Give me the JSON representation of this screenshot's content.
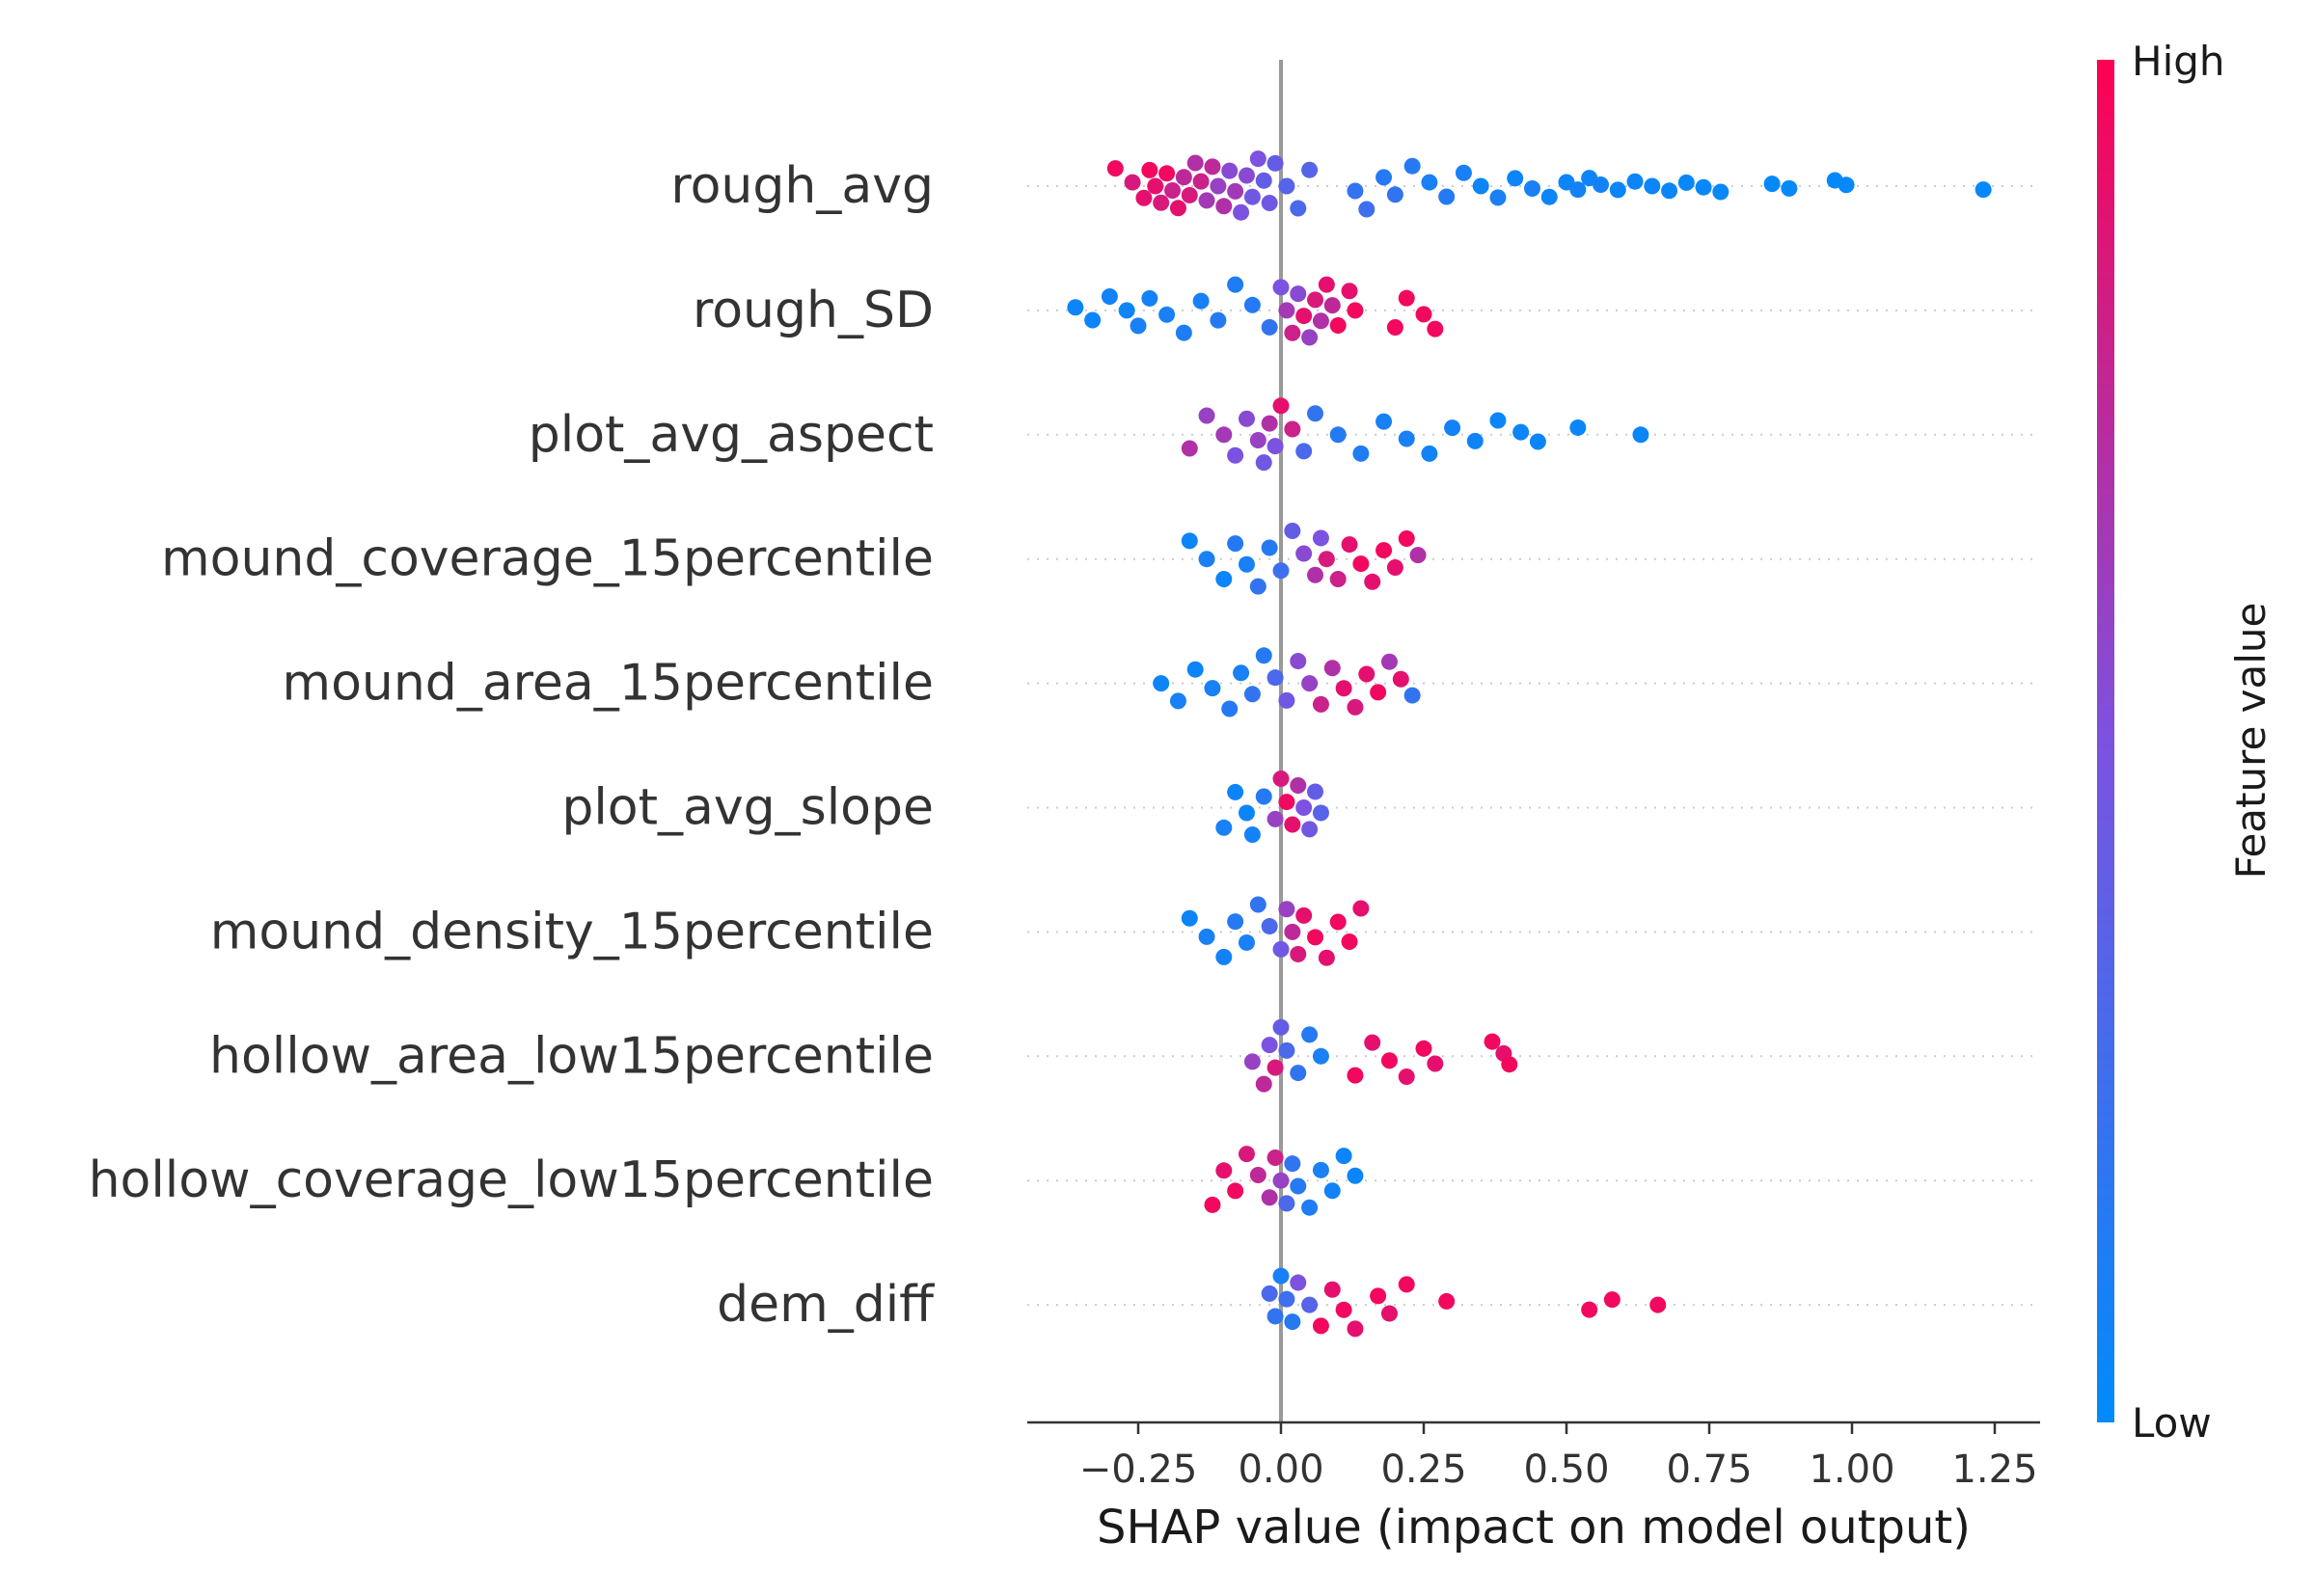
{
  "chart_data": {
    "type": "scatter",
    "subtype": "shap-beeswarm",
    "title": "",
    "xlabel": "SHAP value (impact on model output)",
    "xlim": [
      -0.44,
      1.31
    ],
    "x_ticks": [
      -0.25,
      0.0,
      0.25,
      0.5,
      0.75,
      1.0,
      1.25
    ],
    "x_tick_labels": [
      "−0.25",
      "0.00",
      "0.25",
      "0.50",
      "0.75",
      "1.00",
      "1.25"
    ],
    "zero_line": 0.0,
    "colorbar": {
      "title": "Feature value",
      "high_label": "High",
      "low_label": "Low",
      "low_color": "#008bfb",
      "mid_color": "#7c52e0",
      "high_color": "#ff0051"
    },
    "features": [
      {
        "name": "rough_avg",
        "points": [
          {
            "x": -0.29,
            "v": 0.95
          },
          {
            "x": -0.26,
            "v": 0.85
          },
          {
            "x": -0.24,
            "v": 0.9
          },
          {
            "x": -0.23,
            "v": 0.95
          },
          {
            "x": -0.22,
            "v": 0.9
          },
          {
            "x": -0.21,
            "v": 0.85
          },
          {
            "x": -0.2,
            "v": 0.95
          },
          {
            "x": -0.19,
            "v": 0.8
          },
          {
            "x": -0.18,
            "v": 0.9
          },
          {
            "x": -0.17,
            "v": 0.75
          },
          {
            "x": -0.16,
            "v": 0.85
          },
          {
            "x": -0.15,
            "v": 0.7
          },
          {
            "x": -0.14,
            "v": 0.8
          },
          {
            "x": -0.13,
            "v": 0.65
          },
          {
            "x": -0.12,
            "v": 0.75
          },
          {
            "x": -0.11,
            "v": 0.6
          },
          {
            "x": -0.1,
            "v": 0.7
          },
          {
            "x": -0.09,
            "v": 0.55
          },
          {
            "x": -0.08,
            "v": 0.65
          },
          {
            "x": -0.07,
            "v": 0.5
          },
          {
            "x": -0.06,
            "v": 0.55
          },
          {
            "x": -0.05,
            "v": 0.45
          },
          {
            "x": -0.04,
            "v": 0.5
          },
          {
            "x": -0.03,
            "v": 0.4
          },
          {
            "x": -0.02,
            "v": 0.45
          },
          {
            "x": -0.01,
            "v": 0.4
          },
          {
            "x": 0.01,
            "v": 0.35
          },
          {
            "x": 0.03,
            "v": 0.3
          },
          {
            "x": 0.05,
            "v": 0.35
          },
          {
            "x": 0.13,
            "v": 0.2
          },
          {
            "x": 0.15,
            "v": 0.25
          },
          {
            "x": 0.18,
            "v": 0.15
          },
          {
            "x": 0.2,
            "v": 0.2
          },
          {
            "x": 0.23,
            "v": 0.15
          },
          {
            "x": 0.26,
            "v": 0.1
          },
          {
            "x": 0.29,
            "v": 0.15
          },
          {
            "x": 0.32,
            "v": 0.1
          },
          {
            "x": 0.35,
            "v": 0.05
          },
          {
            "x": 0.38,
            "v": 0.1
          },
          {
            "x": 0.41,
            "v": 0.05
          },
          {
            "x": 0.44,
            "v": 0.1
          },
          {
            "x": 0.47,
            "v": 0.05
          },
          {
            "x": 0.5,
            "v": 0.05
          },
          {
            "x": 0.52,
            "v": 0.08
          },
          {
            "x": 0.54,
            "v": 0.05
          },
          {
            "x": 0.56,
            "v": 0.08
          },
          {
            "x": 0.59,
            "v": 0.05
          },
          {
            "x": 0.62,
            "v": 0.05
          },
          {
            "x": 0.65,
            "v": 0.05
          },
          {
            "x": 0.68,
            "v": 0.05
          },
          {
            "x": 0.71,
            "v": 0.03
          },
          {
            "x": 0.74,
            "v": 0.03
          },
          {
            "x": 0.77,
            "v": 0.03
          },
          {
            "x": 0.86,
            "v": 0.02
          },
          {
            "x": 0.89,
            "v": 0.02
          },
          {
            "x": 0.97,
            "v": 0.02
          },
          {
            "x": 0.99,
            "v": 0.02
          },
          {
            "x": 1.23,
            "v": 0.02
          }
        ]
      },
      {
        "name": "rough_SD",
        "points": [
          {
            "x": -0.36,
            "v": 0.05
          },
          {
            "x": -0.33,
            "v": 0.05
          },
          {
            "x": -0.3,
            "v": 0.08
          },
          {
            "x": -0.27,
            "v": 0.05
          },
          {
            "x": -0.25,
            "v": 0.1
          },
          {
            "x": -0.23,
            "v": 0.08
          },
          {
            "x": -0.2,
            "v": 0.1
          },
          {
            "x": -0.17,
            "v": 0.12
          },
          {
            "x": -0.14,
            "v": 0.1
          },
          {
            "x": -0.11,
            "v": 0.15
          },
          {
            "x": -0.08,
            "v": 0.12
          },
          {
            "x": -0.05,
            "v": 0.15
          },
          {
            "x": -0.02,
            "v": 0.2
          },
          {
            "x": 0.0,
            "v": 0.5
          },
          {
            "x": 0.01,
            "v": 0.65
          },
          {
            "x": 0.02,
            "v": 0.8
          },
          {
            "x": 0.03,
            "v": 0.55
          },
          {
            "x": 0.04,
            "v": 0.9
          },
          {
            "x": 0.05,
            "v": 0.6
          },
          {
            "x": 0.06,
            "v": 0.85
          },
          {
            "x": 0.07,
            "v": 0.7
          },
          {
            "x": 0.08,
            "v": 0.9
          },
          {
            "x": 0.09,
            "v": 0.75
          },
          {
            "x": 0.1,
            "v": 0.95
          },
          {
            "x": 0.12,
            "v": 0.9
          },
          {
            "x": 0.13,
            "v": 0.95
          },
          {
            "x": 0.2,
            "v": 0.95
          },
          {
            "x": 0.22,
            "v": 0.95
          },
          {
            "x": 0.25,
            "v": 0.95
          },
          {
            "x": 0.27,
            "v": 0.95
          }
        ]
      },
      {
        "name": "plot_avg_aspect",
        "points": [
          {
            "x": -0.16,
            "v": 0.7
          },
          {
            "x": -0.13,
            "v": 0.6
          },
          {
            "x": -0.1,
            "v": 0.65
          },
          {
            "x": -0.08,
            "v": 0.5
          },
          {
            "x": -0.06,
            "v": 0.55
          },
          {
            "x": -0.04,
            "v": 0.6
          },
          {
            "x": -0.03,
            "v": 0.45
          },
          {
            "x": -0.02,
            "v": 0.7
          },
          {
            "x": -0.01,
            "v": 0.5
          },
          {
            "x": 0.0,
            "v": 0.9
          },
          {
            "x": 0.02,
            "v": 0.8
          },
          {
            "x": 0.04,
            "v": 0.3
          },
          {
            "x": 0.06,
            "v": 0.2
          },
          {
            "x": 0.1,
            "v": 0.15
          },
          {
            "x": 0.14,
            "v": 0.12
          },
          {
            "x": 0.18,
            "v": 0.1
          },
          {
            "x": 0.22,
            "v": 0.1
          },
          {
            "x": 0.26,
            "v": 0.08
          },
          {
            "x": 0.3,
            "v": 0.08
          },
          {
            "x": 0.34,
            "v": 0.06
          },
          {
            "x": 0.38,
            "v": 0.05
          },
          {
            "x": 0.42,
            "v": 0.05
          },
          {
            "x": 0.45,
            "v": 0.05
          },
          {
            "x": 0.52,
            "v": 0.04
          },
          {
            "x": 0.63,
            "v": 0.04
          }
        ]
      },
      {
        "name": "mound_coverage_15percentile",
        "points": [
          {
            "x": -0.16,
            "v": 0.05
          },
          {
            "x": -0.13,
            "v": 0.1
          },
          {
            "x": -0.1,
            "v": 0.05
          },
          {
            "x": -0.08,
            "v": 0.15
          },
          {
            "x": -0.06,
            "v": 0.1
          },
          {
            "x": -0.04,
            "v": 0.2
          },
          {
            "x": -0.02,
            "v": 0.15
          },
          {
            "x": 0.0,
            "v": 0.25
          },
          {
            "x": 0.02,
            "v": 0.4
          },
          {
            "x": 0.04,
            "v": 0.55
          },
          {
            "x": 0.06,
            "v": 0.7
          },
          {
            "x": 0.07,
            "v": 0.5
          },
          {
            "x": 0.08,
            "v": 0.85
          },
          {
            "x": 0.1,
            "v": 0.8
          },
          {
            "x": 0.12,
            "v": 0.9
          },
          {
            "x": 0.14,
            "v": 0.95
          },
          {
            "x": 0.16,
            "v": 0.9
          },
          {
            "x": 0.18,
            "v": 0.95
          },
          {
            "x": 0.2,
            "v": 0.9
          },
          {
            "x": 0.22,
            "v": 0.95
          },
          {
            "x": 0.24,
            "v": 0.7
          }
        ]
      },
      {
        "name": "mound_area_15percentile",
        "points": [
          {
            "x": -0.21,
            "v": 0.05
          },
          {
            "x": -0.18,
            "v": 0.1
          },
          {
            "x": -0.15,
            "v": 0.05
          },
          {
            "x": -0.12,
            "v": 0.1
          },
          {
            "x": -0.09,
            "v": 0.15
          },
          {
            "x": -0.07,
            "v": 0.1
          },
          {
            "x": -0.05,
            "v": 0.2
          },
          {
            "x": -0.03,
            "v": 0.15
          },
          {
            "x": -0.01,
            "v": 0.3
          },
          {
            "x": 0.01,
            "v": 0.45
          },
          {
            "x": 0.03,
            "v": 0.55
          },
          {
            "x": 0.05,
            "v": 0.6
          },
          {
            "x": 0.07,
            "v": 0.8
          },
          {
            "x": 0.09,
            "v": 0.7
          },
          {
            "x": 0.11,
            "v": 0.9
          },
          {
            "x": 0.13,
            "v": 0.85
          },
          {
            "x": 0.15,
            "v": 0.9
          },
          {
            "x": 0.17,
            "v": 0.95
          },
          {
            "x": 0.19,
            "v": 0.65
          },
          {
            "x": 0.21,
            "v": 0.9
          },
          {
            "x": 0.23,
            "v": 0.2
          }
        ]
      },
      {
        "name": "plot_avg_slope",
        "points": [
          {
            "x": -0.1,
            "v": 0.1
          },
          {
            "x": -0.08,
            "v": 0.05
          },
          {
            "x": -0.06,
            "v": 0.05
          },
          {
            "x": -0.05,
            "v": 0.08
          },
          {
            "x": -0.03,
            "v": 0.15
          },
          {
            "x": -0.01,
            "v": 0.6
          },
          {
            "x": 0.0,
            "v": 0.85
          },
          {
            "x": 0.01,
            "v": 0.95
          },
          {
            "x": 0.02,
            "v": 0.9
          },
          {
            "x": 0.03,
            "v": 0.7
          },
          {
            "x": 0.04,
            "v": 0.5
          },
          {
            "x": 0.05,
            "v": 0.45
          },
          {
            "x": 0.06,
            "v": 0.4
          },
          {
            "x": 0.07,
            "v": 0.35
          }
        ]
      },
      {
        "name": "mound_density_15percentile",
        "points": [
          {
            "x": -0.16,
            "v": 0.05
          },
          {
            "x": -0.13,
            "v": 0.1
          },
          {
            "x": -0.1,
            "v": 0.08
          },
          {
            "x": -0.08,
            "v": 0.15
          },
          {
            "x": -0.06,
            "v": 0.1
          },
          {
            "x": -0.04,
            "v": 0.2
          },
          {
            "x": -0.02,
            "v": 0.3
          },
          {
            "x": 0.0,
            "v": 0.45
          },
          {
            "x": 0.01,
            "v": 0.6
          },
          {
            "x": 0.02,
            "v": 0.75
          },
          {
            "x": 0.03,
            "v": 0.85
          },
          {
            "x": 0.04,
            "v": 0.9
          },
          {
            "x": 0.06,
            "v": 0.95
          },
          {
            "x": 0.08,
            "v": 0.9
          },
          {
            "x": 0.1,
            "v": 0.95
          },
          {
            "x": 0.12,
            "v": 0.95
          },
          {
            "x": 0.14,
            "v": 0.9
          }
        ]
      },
      {
        "name": "hollow_area_low15percentile",
        "points": [
          {
            "x": -0.05,
            "v": 0.6
          },
          {
            "x": -0.03,
            "v": 0.75
          },
          {
            "x": -0.02,
            "v": 0.5
          },
          {
            "x": -0.01,
            "v": 0.85
          },
          {
            "x": 0.0,
            "v": 0.4
          },
          {
            "x": 0.01,
            "v": 0.3
          },
          {
            "x": 0.03,
            "v": 0.2
          },
          {
            "x": 0.05,
            "v": 0.15
          },
          {
            "x": 0.07,
            "v": 0.1
          },
          {
            "x": 0.13,
            "v": 0.95
          },
          {
            "x": 0.16,
            "v": 0.9
          },
          {
            "x": 0.19,
            "v": 0.95
          },
          {
            "x": 0.22,
            "v": 0.9
          },
          {
            "x": 0.25,
            "v": 0.95
          },
          {
            "x": 0.27,
            "v": 0.9
          },
          {
            "x": 0.37,
            "v": 0.95
          },
          {
            "x": 0.39,
            "v": 0.9
          },
          {
            "x": 0.4,
            "v": 0.95
          }
        ]
      },
      {
        "name": "hollow_coverage_low15percentile",
        "points": [
          {
            "x": -0.12,
            "v": 0.95
          },
          {
            "x": -0.1,
            "v": 0.9
          },
          {
            "x": -0.08,
            "v": 0.95
          },
          {
            "x": -0.06,
            "v": 0.85
          },
          {
            "x": -0.04,
            "v": 0.75
          },
          {
            "x": -0.02,
            "v": 0.7
          },
          {
            "x": -0.01,
            "v": 0.8
          },
          {
            "x": 0.0,
            "v": 0.6
          },
          {
            "x": 0.01,
            "v": 0.3
          },
          {
            "x": 0.02,
            "v": 0.2
          },
          {
            "x": 0.03,
            "v": 0.15
          },
          {
            "x": 0.05,
            "v": 0.12
          },
          {
            "x": 0.07,
            "v": 0.1
          },
          {
            "x": 0.09,
            "v": 0.08
          },
          {
            "x": 0.11,
            "v": 0.05
          },
          {
            "x": 0.13,
            "v": 0.05
          }
        ]
      },
      {
        "name": "dem_diff",
        "points": [
          {
            "x": -0.02,
            "v": 0.3
          },
          {
            "x": -0.01,
            "v": 0.2
          },
          {
            "x": 0.0,
            "v": 0.1
          },
          {
            "x": 0.01,
            "v": 0.25
          },
          {
            "x": 0.02,
            "v": 0.15
          },
          {
            "x": 0.03,
            "v": 0.5
          },
          {
            "x": 0.05,
            "v": 0.35
          },
          {
            "x": 0.07,
            "v": 0.95
          },
          {
            "x": 0.09,
            "v": 0.9
          },
          {
            "x": 0.11,
            "v": 0.95
          },
          {
            "x": 0.13,
            "v": 0.9
          },
          {
            "x": 0.17,
            "v": 0.95
          },
          {
            "x": 0.19,
            "v": 0.9
          },
          {
            "x": 0.22,
            "v": 0.95
          },
          {
            "x": 0.29,
            "v": 0.95
          },
          {
            "x": 0.54,
            "v": 0.95
          },
          {
            "x": 0.58,
            "v": 0.95
          },
          {
            "x": 0.66,
            "v": 0.95
          }
        ]
      }
    ]
  }
}
